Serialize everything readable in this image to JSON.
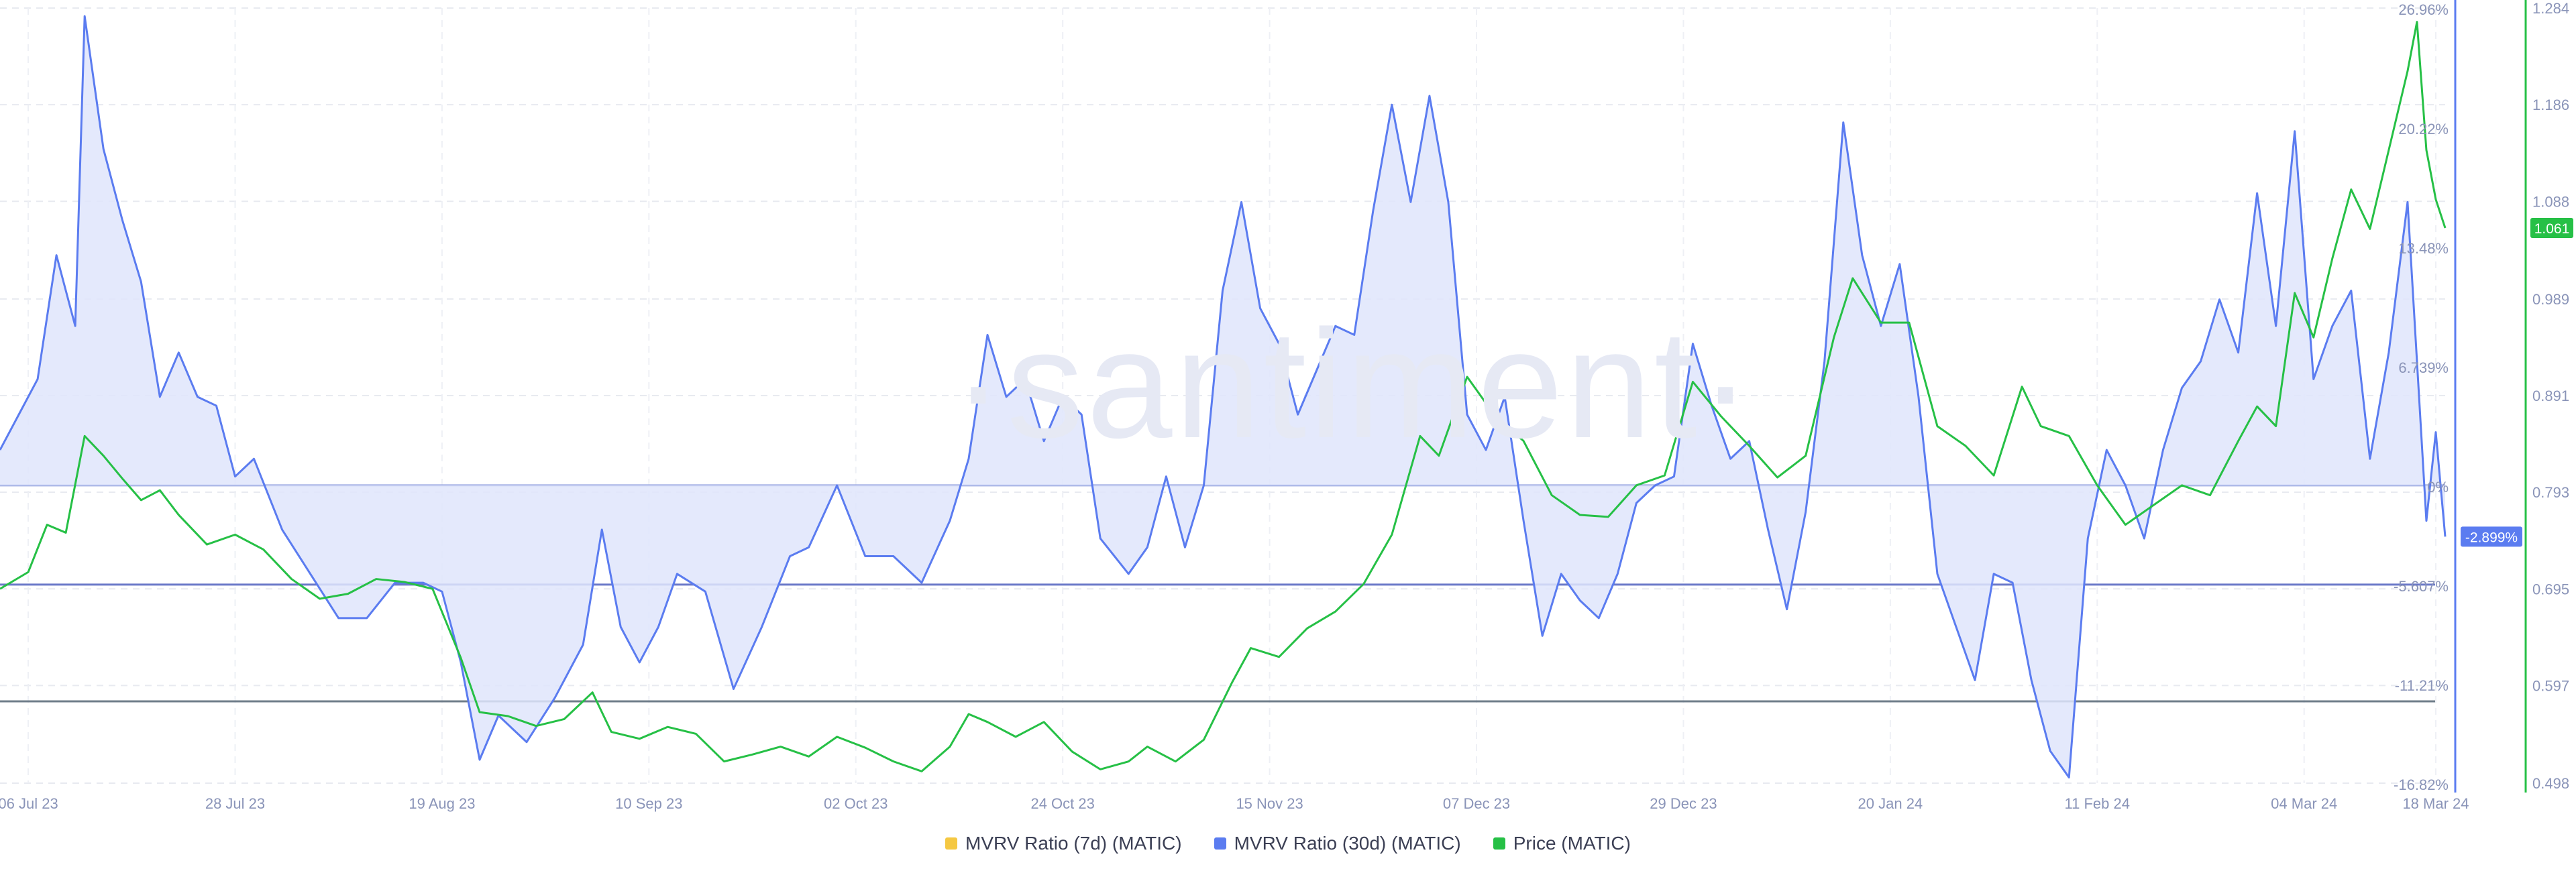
{
  "watermark": "·santiment·",
  "chart_data": {
    "type": "line",
    "x_axis": {
      "ticks": [
        "06 Jul 23",
        "28 Jul 23",
        "19 Aug 23",
        "10 Sep 23",
        "02 Oct 23",
        "24 Oct 23",
        "15 Nov 23",
        "07 Dec 23",
        "29 Dec 23",
        "20 Jan 24",
        "11 Feb 24",
        "04 Mar 24",
        "18 Mar 24"
      ],
      "range": [
        "2023-07-03",
        "2024-03-19"
      ]
    },
    "y_left": {
      "ticks": [
        "26.96%",
        "20.22%",
        "13.48%",
        "6.739%",
        "0%",
        "-5.607%",
        "-11.21%",
        "-16.82%"
      ],
      "ylim": [
        -16.82,
        26.96
      ],
      "unit": "%"
    },
    "y_right": {
      "ticks": [
        "1.284",
        "1.186",
        "1.088",
        "0.989",
        "0.891",
        "0.793",
        "0.695",
        "0.597",
        "0.498"
      ],
      "ylim": [
        0.498,
        1.284
      ]
    },
    "reference_lines": [
      -5.607,
      -12.2
    ],
    "last_value_labels": {
      "mvrv_30d": "-2.899%",
      "price": "1.061"
    },
    "grid": true,
    "legend_position": "bottom",
    "series": [
      {
        "name": "MVRV Ratio (7d) (MATIC)",
        "color": "#f5c842",
        "axis": "left",
        "values": []
      },
      {
        "name": "MVRV Ratio (30d) (MATIC)",
        "color": "#5b7cf0",
        "axis": "left",
        "fill": true,
        "points": [
          [
            "2023-07-03",
            2.0
          ],
          [
            "2023-07-05",
            4.0
          ],
          [
            "2023-07-07",
            6.0
          ],
          [
            "2023-07-09",
            13.0
          ],
          [
            "2023-07-11",
            9.0
          ],
          [
            "2023-07-12",
            26.5
          ],
          [
            "2023-07-14",
            19.0
          ],
          [
            "2023-07-16",
            15.0
          ],
          [
            "2023-07-18",
            11.5
          ],
          [
            "2023-07-20",
            5.0
          ],
          [
            "2023-07-22",
            7.5
          ],
          [
            "2023-07-24",
            5.0
          ],
          [
            "2023-07-26",
            4.5
          ],
          [
            "2023-07-28",
            0.5
          ],
          [
            "2023-07-30",
            1.5
          ],
          [
            "2023-08-02",
            -2.5
          ],
          [
            "2023-08-05",
            -5.0
          ],
          [
            "2023-08-08",
            -7.5
          ],
          [
            "2023-08-11",
            -7.5
          ],
          [
            "2023-08-14",
            -5.5
          ],
          [
            "2023-08-17",
            -5.5
          ],
          [
            "2023-08-19",
            -6.0
          ],
          [
            "2023-08-21",
            -10.0
          ],
          [
            "2023-08-23",
            -15.5
          ],
          [
            "2023-08-25",
            -13.0
          ],
          [
            "2023-08-28",
            -14.5
          ],
          [
            "2023-08-31",
            -12.0
          ],
          [
            "2023-09-03",
            -9.0
          ],
          [
            "2023-09-05",
            -2.5
          ],
          [
            "2023-09-07",
            -8.0
          ],
          [
            "2023-09-09",
            -10.0
          ],
          [
            "2023-09-11",
            -8.0
          ],
          [
            "2023-09-13",
            -5.0
          ],
          [
            "2023-09-16",
            -6.0
          ],
          [
            "2023-09-19",
            -11.5
          ],
          [
            "2023-09-22",
            -8.0
          ],
          [
            "2023-09-25",
            -4.0
          ],
          [
            "2023-09-27",
            -3.5
          ],
          [
            "2023-09-30",
            0.0
          ],
          [
            "2023-10-03",
            -4.0
          ],
          [
            "2023-10-06",
            -4.0
          ],
          [
            "2023-10-09",
            -5.5
          ],
          [
            "2023-10-12",
            -2.0
          ],
          [
            "2023-10-14",
            1.5
          ],
          [
            "2023-10-16",
            8.5
          ],
          [
            "2023-10-18",
            5.0
          ],
          [
            "2023-10-20",
            6.0
          ],
          [
            "2023-10-22",
            2.5
          ],
          [
            "2023-10-24",
            5.0
          ],
          [
            "2023-10-26",
            4.0
          ],
          [
            "2023-10-28",
            -3.0
          ],
          [
            "2023-10-31",
            -5.0
          ],
          [
            "2023-11-02",
            -3.5
          ],
          [
            "2023-11-04",
            0.5
          ],
          [
            "2023-11-06",
            -3.5
          ],
          [
            "2023-11-08",
            0.0
          ],
          [
            "2023-11-10",
            11.0
          ],
          [
            "2023-11-12",
            16.0
          ],
          [
            "2023-11-14",
            10.0
          ],
          [
            "2023-11-16",
            8.0
          ],
          [
            "2023-11-18",
            4.0
          ],
          [
            "2023-11-20",
            6.5
          ],
          [
            "2023-11-22",
            9.0
          ],
          [
            "2023-11-24",
            8.5
          ],
          [
            "2023-11-26",
            15.5
          ],
          [
            "2023-11-28",
            21.5
          ],
          [
            "2023-11-30",
            16.0
          ],
          [
            "2023-12-02",
            22.0
          ],
          [
            "2023-12-04",
            16.0
          ],
          [
            "2023-12-06",
            4.0
          ],
          [
            "2023-12-08",
            2.0
          ],
          [
            "2023-12-10",
            5.0
          ],
          [
            "2023-12-12",
            -2.0
          ],
          [
            "2023-12-14",
            -8.5
          ],
          [
            "2023-12-16",
            -5.0
          ],
          [
            "2023-12-18",
            -6.5
          ],
          [
            "2023-12-20",
            -7.5
          ],
          [
            "2023-12-22",
            -5.0
          ],
          [
            "2023-12-24",
            -1.0
          ],
          [
            "2023-12-26",
            0.0
          ],
          [
            "2023-12-28",
            0.5
          ],
          [
            "2023-12-30",
            8.0
          ],
          [
            "2024-01-01",
            4.5
          ],
          [
            "2024-01-03",
            1.5
          ],
          [
            "2024-01-05",
            2.5
          ],
          [
            "2024-01-07",
            -2.5
          ],
          [
            "2024-01-09",
            -7.0
          ],
          [
            "2024-01-11",
            -1.5
          ],
          [
            "2024-01-13",
            7.0
          ],
          [
            "2024-01-15",
            20.5
          ],
          [
            "2024-01-17",
            13.0
          ],
          [
            "2024-01-19",
            9.0
          ],
          [
            "2024-01-21",
            12.5
          ],
          [
            "2024-01-23",
            5.0
          ],
          [
            "2024-01-25",
            -5.0
          ],
          [
            "2024-01-27",
            -8.0
          ],
          [
            "2024-01-29",
            -11.0
          ],
          [
            "2024-01-31",
            -5.0
          ],
          [
            "2024-02-02",
            -5.5
          ],
          [
            "2024-02-04",
            -11.0
          ],
          [
            "2024-02-06",
            -15.0
          ],
          [
            "2024-02-08",
            -16.5
          ],
          [
            "2024-02-10",
            -3.0
          ],
          [
            "2024-02-12",
            2.0
          ],
          [
            "2024-02-14",
            0.0
          ],
          [
            "2024-02-16",
            -3.0
          ],
          [
            "2024-02-18",
            2.0
          ],
          [
            "2024-02-20",
            5.5
          ],
          [
            "2024-02-22",
            7.0
          ],
          [
            "2024-02-24",
            10.5
          ],
          [
            "2024-02-26",
            7.5
          ],
          [
            "2024-02-28",
            16.5
          ],
          [
            "2024-03-01",
            9.0
          ],
          [
            "2024-03-03",
            20.0
          ],
          [
            "2024-03-05",
            6.0
          ],
          [
            "2024-03-07",
            9.0
          ],
          [
            "2024-03-09",
            11.0
          ],
          [
            "2024-03-11",
            1.5
          ],
          [
            "2024-03-13",
            7.5
          ],
          [
            "2024-03-15",
            16.0
          ],
          [
            "2024-03-17",
            -2.0
          ],
          [
            "2024-03-18",
            3.0
          ],
          [
            "2024-03-19",
            -2.899
          ]
        ]
      },
      {
        "name": "Price (MATIC)",
        "color": "#26c046",
        "axis": "right",
        "points": [
          [
            "2023-07-03",
            0.695
          ],
          [
            "2023-07-06",
            0.712
          ],
          [
            "2023-07-08",
            0.76
          ],
          [
            "2023-07-10",
            0.752
          ],
          [
            "2023-07-12",
            0.85
          ],
          [
            "2023-07-14",
            0.83
          ],
          [
            "2023-07-16",
            0.807
          ],
          [
            "2023-07-18",
            0.785
          ],
          [
            "2023-07-20",
            0.795
          ],
          [
            "2023-07-22",
            0.77
          ],
          [
            "2023-07-25",
            0.74
          ],
          [
            "2023-07-28",
            0.75
          ],
          [
            "2023-07-31",
            0.735
          ],
          [
            "2023-08-03",
            0.705
          ],
          [
            "2023-08-06",
            0.685
          ],
          [
            "2023-08-09",
            0.69
          ],
          [
            "2023-08-12",
            0.705
          ],
          [
            "2023-08-15",
            0.702
          ],
          [
            "2023-08-18",
            0.695
          ],
          [
            "2023-08-21",
            0.625
          ],
          [
            "2023-08-23",
            0.57
          ],
          [
            "2023-08-26",
            0.566
          ],
          [
            "2023-08-29",
            0.556
          ],
          [
            "2023-09-01",
            0.563
          ],
          [
            "2023-09-04",
            0.59
          ],
          [
            "2023-09-06",
            0.55
          ],
          [
            "2023-09-09",
            0.543
          ],
          [
            "2023-09-12",
            0.555
          ],
          [
            "2023-09-15",
            0.548
          ],
          [
            "2023-09-18",
            0.52
          ],
          [
            "2023-09-21",
            0.527
          ],
          [
            "2023-09-24",
            0.535
          ],
          [
            "2023-09-27",
            0.525
          ],
          [
            "2023-09-30",
            0.545
          ],
          [
            "2023-10-03",
            0.534
          ],
          [
            "2023-10-06",
            0.52
          ],
          [
            "2023-10-09",
            0.51
          ],
          [
            "2023-10-12",
            0.535
          ],
          [
            "2023-10-14",
            0.568
          ],
          [
            "2023-10-16",
            0.56
          ],
          [
            "2023-10-19",
            0.545
          ],
          [
            "2023-10-22",
            0.56
          ],
          [
            "2023-10-25",
            0.53
          ],
          [
            "2023-10-28",
            0.512
          ],
          [
            "2023-10-31",
            0.52
          ],
          [
            "2023-11-02",
            0.535
          ],
          [
            "2023-11-05",
            0.52
          ],
          [
            "2023-11-08",
            0.542
          ],
          [
            "2023-11-11",
            0.6
          ],
          [
            "2023-11-13",
            0.635
          ],
          [
            "2023-11-16",
            0.626
          ],
          [
            "2023-11-19",
            0.655
          ],
          [
            "2023-11-22",
            0.672
          ],
          [
            "2023-11-25",
            0.7
          ],
          [
            "2023-11-28",
            0.75
          ],
          [
            "2023-12-01",
            0.85
          ],
          [
            "2023-12-03",
            0.83
          ],
          [
            "2023-12-06",
            0.91
          ],
          [
            "2023-12-09",
            0.87
          ],
          [
            "2023-12-12",
            0.845
          ],
          [
            "2023-12-15",
            0.79
          ],
          [
            "2023-12-18",
            0.77
          ],
          [
            "2023-12-21",
            0.768
          ],
          [
            "2023-12-24",
            0.8
          ],
          [
            "2023-12-27",
            0.81
          ],
          [
            "2023-12-30",
            0.905
          ],
          [
            "2024-01-02",
            0.87
          ],
          [
            "2024-01-05",
            0.84
          ],
          [
            "2024-01-08",
            0.808
          ],
          [
            "2024-01-11",
            0.83
          ],
          [
            "2024-01-14",
            0.95
          ],
          [
            "2024-01-16",
            1.01
          ],
          [
            "2024-01-19",
            0.965
          ],
          [
            "2024-01-22",
            0.965
          ],
          [
            "2024-01-25",
            0.86
          ],
          [
            "2024-01-28",
            0.84
          ],
          [
            "2024-01-31",
            0.81
          ],
          [
            "2024-02-03",
            0.9
          ],
          [
            "2024-02-05",
            0.86
          ],
          [
            "2024-02-08",
            0.85
          ],
          [
            "2024-02-11",
            0.8
          ],
          [
            "2024-02-14",
            0.76
          ],
          [
            "2024-02-17",
            0.78
          ],
          [
            "2024-02-20",
            0.8
          ],
          [
            "2024-02-23",
            0.79
          ],
          [
            "2024-02-26",
            0.845
          ],
          [
            "2024-02-28",
            0.88
          ],
          [
            "2024-03-01",
            0.86
          ],
          [
            "2024-03-03",
            0.995
          ],
          [
            "2024-03-05",
            0.95
          ],
          [
            "2024-03-07",
            1.03
          ],
          [
            "2024-03-09",
            1.1
          ],
          [
            "2024-03-11",
            1.06
          ],
          [
            "2024-03-13",
            1.14
          ],
          [
            "2024-03-15",
            1.22
          ],
          [
            "2024-03-16",
            1.27
          ],
          [
            "2024-03-17",
            1.14
          ],
          [
            "2024-03-18",
            1.09
          ],
          [
            "2024-03-19",
            1.061
          ]
        ]
      }
    ]
  }
}
